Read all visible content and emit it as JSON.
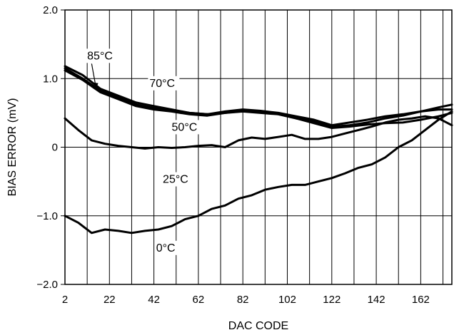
{
  "chart_data": {
    "type": "line",
    "title": "",
    "xlabel": "DAC CODE",
    "ylabel": "BIAS ERROR (mV)",
    "xlim": [
      2,
      176
    ],
    "ylim": [
      -2.0,
      2.0
    ],
    "x_ticks": [
      2,
      22,
      42,
      62,
      82,
      102,
      122,
      142,
      162
    ],
    "x_tick_labels": [
      "2",
      "22",
      "42",
      "62",
      "82",
      "102",
      "122",
      "142",
      "162"
    ],
    "y_ticks": [
      -2.0,
      -1.0,
      0,
      1.0,
      2.0
    ],
    "y_tick_labels": [
      "−2.0",
      "−1.0",
      "0",
      "1.0",
      "2.0"
    ],
    "grid": true,
    "series": [
      {
        "name": "85°C",
        "x": [
          2,
          10,
          18,
          26,
          34,
          42,
          50,
          58,
          66,
          74,
          82,
          90,
          98,
          106,
          114,
          122,
          130,
          138,
          146,
          154,
          162,
          170,
          176
        ],
        "y": [
          1.18,
          1.05,
          0.85,
          0.75,
          0.65,
          0.6,
          0.55,
          0.5,
          0.48,
          0.5,
          0.52,
          0.5,
          0.48,
          0.42,
          0.38,
          0.3,
          0.32,
          0.36,
          0.42,
          0.46,
          0.52,
          0.58,
          0.62
        ]
      },
      {
        "name": "70°C",
        "x": [
          2,
          10,
          18,
          26,
          34,
          42,
          50,
          58,
          66,
          74,
          82,
          90,
          98,
          106,
          114,
          122,
          130,
          138,
          146,
          154,
          162,
          170,
          176
        ],
        "y": [
          1.15,
          1.0,
          0.82,
          0.72,
          0.62,
          0.57,
          0.53,
          0.5,
          0.48,
          0.52,
          0.55,
          0.53,
          0.5,
          0.45,
          0.4,
          0.32,
          0.36,
          0.4,
          0.45,
          0.48,
          0.52,
          0.55,
          0.55
        ]
      },
      {
        "name": "50°C",
        "x": [
          2,
          10,
          18,
          26,
          34,
          42,
          50,
          58,
          66,
          74,
          82,
          90,
          98,
          106,
          114,
          122,
          130,
          138,
          146,
          154,
          162,
          170,
          176
        ],
        "y": [
          1.12,
          0.98,
          0.8,
          0.7,
          0.6,
          0.55,
          0.52,
          0.48,
          0.46,
          0.5,
          0.53,
          0.52,
          0.48,
          0.42,
          0.35,
          0.28,
          0.3,
          0.33,
          0.35,
          0.36,
          0.4,
          0.45,
          0.5
        ]
      },
      {
        "name": "25°C",
        "x": [
          2,
          8,
          14,
          20,
          26,
          32,
          38,
          44,
          50,
          56,
          62,
          68,
          74,
          80,
          86,
          92,
          98,
          104,
          110,
          116,
          122,
          128,
          134,
          140,
          146,
          152,
          158,
          164,
          170,
          176
        ],
        "y": [
          0.42,
          0.25,
          0.1,
          0.05,
          0.02,
          0.0,
          -0.02,
          0.0,
          -0.01,
          0.0,
          0.02,
          0.03,
          0.0,
          0.1,
          0.14,
          0.12,
          0.15,
          0.18,
          0.12,
          0.12,
          0.15,
          0.2,
          0.25,
          0.3,
          0.36,
          0.4,
          0.42,
          0.45,
          0.42,
          0.32
        ]
      },
      {
        "name": "0°C",
        "x": [
          2,
          8,
          14,
          20,
          26,
          32,
          38,
          44,
          50,
          56,
          62,
          68,
          74,
          80,
          86,
          92,
          98,
          104,
          110,
          116,
          122,
          128,
          134,
          140,
          146,
          152,
          158,
          164,
          170,
          176
        ],
        "y": [
          -1.0,
          -1.1,
          -1.25,
          -1.2,
          -1.22,
          -1.25,
          -1.22,
          -1.2,
          -1.15,
          -1.05,
          -1.0,
          -0.9,
          -0.85,
          -0.75,
          -0.7,
          -0.62,
          -0.58,
          -0.55,
          -0.55,
          -0.5,
          -0.45,
          -0.38,
          -0.3,
          -0.25,
          -0.15,
          0.0,
          0.1,
          0.25,
          0.4,
          0.52
        ]
      }
    ],
    "annotations": [
      {
        "text": "85°C",
        "x": 12,
        "y": 1.28
      },
      {
        "text": "70°C",
        "x": 40,
        "y": 0.88
      },
      {
        "text": "50°C",
        "x": 50,
        "y": 0.24
      },
      {
        "text": "25°C",
        "x": 46,
        "y": -0.52
      },
      {
        "text": "0°C",
        "x": 43,
        "y": -1.52
      }
    ]
  }
}
